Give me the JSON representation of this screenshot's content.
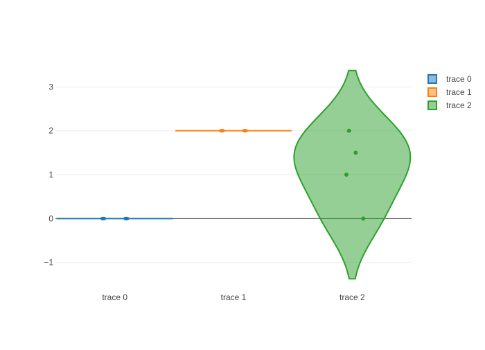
{
  "chart_data": {
    "type": "violin",
    "title": "",
    "xlabel": "",
    "ylabel": "",
    "categories": [
      "trace 0",
      "trace 1",
      "trace 2"
    ],
    "ylim": [
      -1.4,
      3.4
    ],
    "yticks": [
      -1,
      0,
      1,
      2,
      3
    ],
    "ytick_labels": [
      "−1",
      "0",
      "1",
      "2",
      "3"
    ],
    "grid": true,
    "zero_line": true,
    "legend_position": "top-right",
    "series": [
      {
        "name": "trace 0",
        "color": "#1f77b4",
        "points": [
          0,
          0
        ]
      },
      {
        "name": "trace 1",
        "color": "#ff7f0e",
        "points": [
          2,
          2
        ]
      },
      {
        "name": "trace 2",
        "color": "#2ca02c",
        "points": [
          2,
          1.5,
          1,
          0
        ]
      }
    ]
  }
}
